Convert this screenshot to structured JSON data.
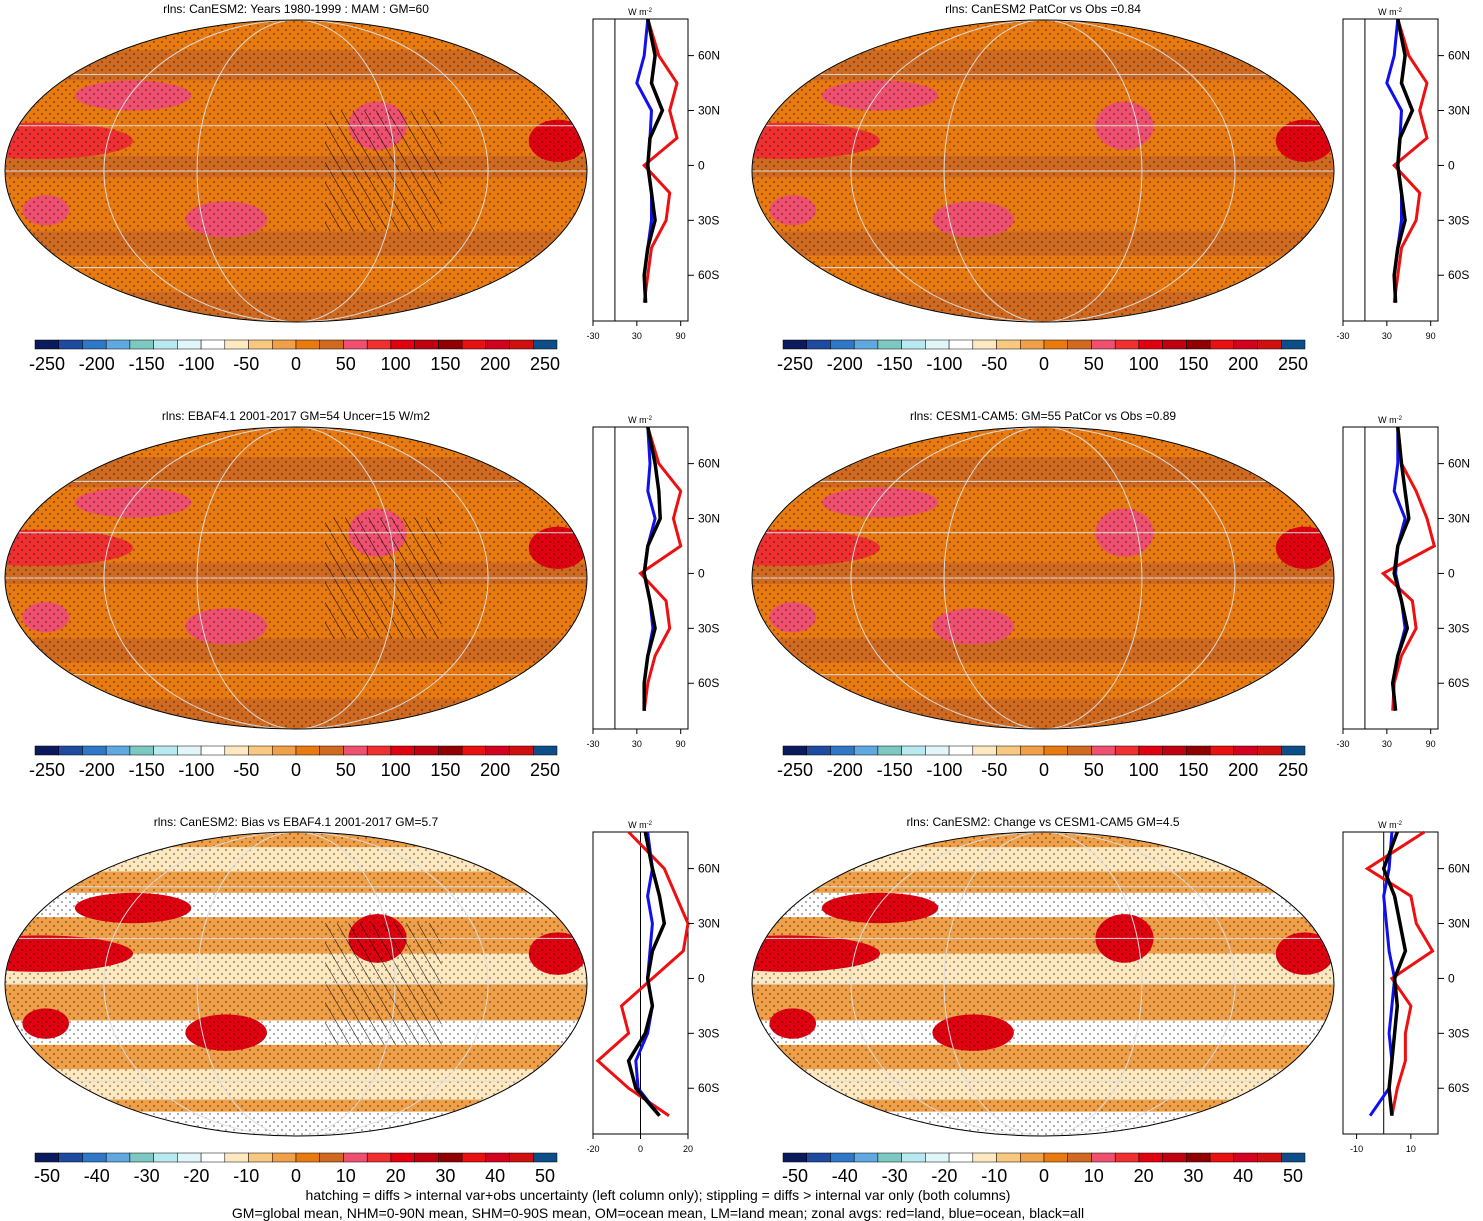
{
  "colorbar_colors": [
    "#0a1a5c",
    "#1e4aa0",
    "#2f78c8",
    "#60a8e0",
    "#7dc8c0",
    "#b8e8f0",
    "#e0f6f8",
    "#ffffff",
    "#fde8c0",
    "#f8c880",
    "#f0a048",
    "#e87a10",
    "#d06a20",
    "#f05070",
    "#f03030",
    "#e00010",
    "#c00010",
    "#900000",
    "#e81010",
    "#d40020",
    "#d01010",
    "#0e4e88"
  ],
  "colorbar_ticks_abs": [
    "-250",
    "-200",
    "-150",
    "-100",
    "-50",
    "0",
    "50",
    "100",
    "150",
    "200",
    "250"
  ],
  "colorbar_ticks_bias": [
    "-50",
    "-40",
    "-30",
    "-20",
    "-10",
    "0",
    "10",
    "20",
    "30",
    "40",
    "50"
  ],
  "panels": [
    {
      "title": "rlns: CanESM2: Years 1980-1999 : MAM : GM=60",
      "hatched": true,
      "stippled": true,
      "colorbar": "abs",
      "zonal_xticks": [
        "-30",
        "30",
        "90"
      ],
      "unit_label": "W m",
      "unit_exp": "-2"
    },
    {
      "title": "rlns: CanESM2 PatCor vs Obs =0.84",
      "hatched": false,
      "stippled": true,
      "colorbar": "abs",
      "zonal_xticks": [
        "-30",
        "30",
        "90"
      ],
      "unit_label": "W m",
      "unit_exp": "-2"
    },
    {
      "title": "rlns: EBAF4.1 2001-2017 GM=54 Uncer=15 W/m2",
      "hatched": true,
      "stippled": true,
      "colorbar": "abs",
      "zonal_xticks": [
        "-30",
        "30",
        "90"
      ],
      "unit_label": "W m",
      "unit_exp": "-2"
    },
    {
      "title": "rlns: CESM1-CAM5: GM=55 PatCor vs Obs =0.89",
      "hatched": false,
      "stippled": true,
      "colorbar": "abs",
      "zonal_xticks": [
        "-30",
        "30",
        "90"
      ],
      "unit_label": "W m",
      "unit_exp": "-2"
    },
    {
      "title": "rlns: CanESM2: Bias vs EBAF4.1 2001-2017 GM=5.7",
      "hatched": true,
      "stippled": true,
      "colorbar": "bias",
      "zonal_xticks": [
        "-20",
        "0",
        "20"
      ],
      "unit_label": "W m",
      "unit_exp": "-2"
    },
    {
      "title": "rlns: CanESM2: Change vs CESM1-CAM5 GM=4.5",
      "hatched": false,
      "stippled": true,
      "colorbar": "bias",
      "zonal_xticks": [
        "-10",
        "10"
      ],
      "unit_label": "W m",
      "unit_exp": "-2"
    }
  ],
  "lat_labels": [
    "60N",
    "30N",
    "0",
    "30S",
    "60S"
  ],
  "footnote": {
    "line1": "hatching = diffs > internal var+obs uncertainty (left column only); stippling = diffs > internal var only (both columns)",
    "line2": "GM=global mean, NHM=0-90N mean, SHM=0-90S mean, OM=ocean mean, LM=land mean; zonal avgs: red=land, blue=ocean, black=all"
  },
  "chart_data": [
    {
      "type": "heatmap",
      "title": "rlns: CanESM2: Years 1980-1999 : MAM : GM=60",
      "colorbar_ticks": [
        -250,
        -200,
        -150,
        -100,
        -50,
        0,
        50,
        100,
        150,
        200,
        250
      ],
      "zonal_mean": {
        "lat": [
          80,
          60,
          45,
          30,
          15,
          0,
          -15,
          -30,
          -45,
          -60,
          -75
        ],
        "all": [
          45,
          55,
          50,
          65,
          48,
          45,
          50,
          55,
          45,
          40,
          42
        ],
        "land": [
          45,
          60,
          85,
          75,
          85,
          40,
          75,
          70,
          50,
          45,
          40
        ],
        "ocean": [
          45,
          40,
          30,
          50,
          48,
          45,
          50,
          50,
          45,
          40,
          42
        ]
      }
    },
    {
      "type": "heatmap",
      "title": "rlns: CanESM2 PatCor vs Obs =0.84",
      "colorbar_ticks": [
        -250,
        -200,
        -150,
        -100,
        -50,
        0,
        50,
        100,
        150,
        200,
        250
      ],
      "zonal_mean": {
        "lat": [
          80,
          60,
          45,
          30,
          15,
          0,
          -15,
          -30,
          -45,
          -60,
          -75
        ],
        "all": [
          45,
          55,
          50,
          65,
          48,
          45,
          50,
          55,
          45,
          40,
          42
        ],
        "land": [
          45,
          60,
          85,
          75,
          85,
          40,
          75,
          70,
          50,
          45,
          40
        ],
        "ocean": [
          45,
          40,
          30,
          50,
          48,
          45,
          50,
          50,
          45,
          40,
          42
        ]
      }
    },
    {
      "type": "heatmap",
      "title": "rlns: EBAF4.1 2001-2017 GM=54 Uncer=15 W/m2",
      "colorbar_ticks": [
        -250,
        -200,
        -150,
        -100,
        -50,
        0,
        50,
        100,
        150,
        200,
        250
      ],
      "zonal_mean": {
        "lat": [
          80,
          60,
          45,
          30,
          15,
          0,
          -15,
          -30,
          -45,
          -60,
          -75
        ],
        "all": [
          45,
          55,
          60,
          62,
          45,
          40,
          48,
          55,
          45,
          40,
          40
        ],
        "land": [
          45,
          60,
          90,
          80,
          90,
          35,
          70,
          75,
          55,
          45,
          40
        ],
        "ocean": [
          45,
          48,
          45,
          55,
          45,
          40,
          48,
          52,
          45,
          40,
          40
        ]
      }
    },
    {
      "type": "heatmap",
      "title": "rlns: CESM1-CAM5: GM=55 PatCor vs Obs =0.89",
      "colorbar_ticks": [
        -250,
        -200,
        -150,
        -100,
        -50,
        0,
        50,
        100,
        150,
        200,
        250
      ],
      "zonal_mean": {
        "lat": [
          80,
          60,
          45,
          30,
          15,
          0,
          -15,
          -30,
          -45,
          -60,
          -75
        ],
        "all": [
          45,
          50,
          55,
          60,
          45,
          40,
          50,
          58,
          45,
          38,
          42
        ],
        "land": [
          45,
          50,
          70,
          85,
          95,
          25,
          65,
          70,
          50,
          40,
          38
        ],
        "ocean": [
          45,
          45,
          40,
          55,
          45,
          42,
          50,
          55,
          45,
          38,
          42
        ]
      }
    },
    {
      "type": "heatmap",
      "title": "rlns: CanESM2: Bias vs EBAF4.1 2001-2017 GM=5.7",
      "colorbar_ticks": [
        -50,
        -40,
        -30,
        -20,
        -10,
        0,
        10,
        20,
        30,
        40,
        50
      ],
      "zonal_mean": {
        "lat": [
          80,
          60,
          45,
          30,
          15,
          0,
          -15,
          -30,
          -45,
          -60,
          -75
        ],
        "all": [
          2,
          5,
          8,
          10,
          5,
          3,
          5,
          2,
          -5,
          -2,
          8
        ],
        "land": [
          -5,
          10,
          15,
          20,
          18,
          5,
          -8,
          -5,
          -18,
          -5,
          12
        ],
        "ocean": [
          3,
          5,
          3,
          5,
          4,
          3,
          5,
          3,
          -2,
          -1,
          8
        ]
      }
    },
    {
      "type": "heatmap",
      "title": "rlns: CanESM2: Change vs CESM1-CAM5 GM=4.5",
      "colorbar_ticks": [
        -50,
        -40,
        -30,
        -20,
        -10,
        0,
        10,
        20,
        30,
        40,
        50
      ],
      "zonal_mean": {
        "lat": [
          80,
          60,
          45,
          30,
          15,
          0,
          -15,
          -30,
          -45,
          -60,
          -75
        ],
        "all": [
          5,
          0,
          4,
          6,
          8,
          4,
          5,
          4,
          3,
          2,
          3
        ],
        "land": [
          15,
          -6,
          10,
          12,
          18,
          3,
          10,
          8,
          8,
          5,
          3
        ],
        "ocean": [
          3,
          2,
          0,
          1,
          2,
          4,
          3,
          2,
          3,
          2,
          -5
        ]
      }
    }
  ]
}
